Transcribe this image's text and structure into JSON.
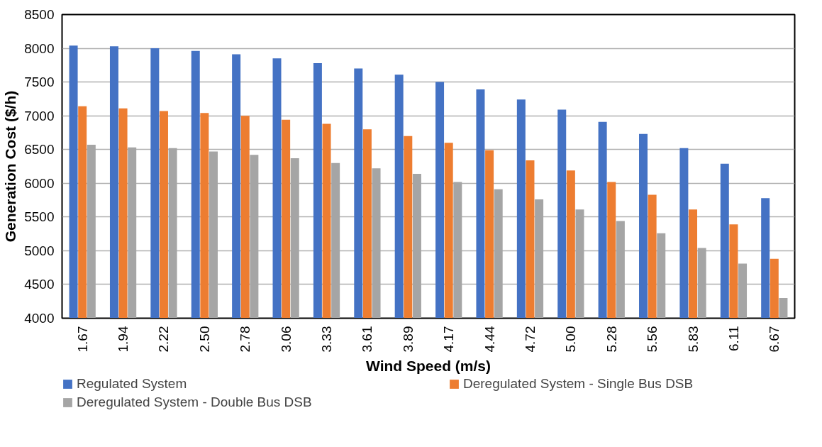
{
  "chart_data": {
    "type": "bar",
    "xlabel": "Wind Speed (m/s)",
    "ylabel": "Generation Cost ($/h)",
    "categories": [
      "1.67",
      "1.94",
      "2.22",
      "2.50",
      "2.78",
      "3.06",
      "3.33",
      "3.61",
      "3.89",
      "4.17",
      "4.44",
      "4.72",
      "5.00",
      "5.28",
      "5.56",
      "5.83",
      "6.11",
      "6.67"
    ],
    "series": [
      {
        "name": "Regulated System",
        "color": "#4472c4",
        "values": [
          8040,
          8030,
          8000,
          7960,
          7910,
          7850,
          7780,
          7700,
          7610,
          7500,
          7390,
          7240,
          7090,
          6910,
          6730,
          6520,
          6290,
          5780
        ]
      },
      {
        "name": "Deregulated System - Single Bus DSB",
        "color": "#ed7d31",
        "values": [
          7140,
          7110,
          7070,
          7040,
          7000,
          6940,
          6880,
          6800,
          6700,
          6600,
          6490,
          6340,
          6190,
          6020,
          5830,
          5610,
          5390,
          4880
        ]
      },
      {
        "name": "Deregulated System - Double Bus DSB",
        "color": "#a5a5a5",
        "values": [
          6570,
          6530,
          6520,
          6470,
          6420,
          6370,
          6300,
          6220,
          6140,
          6020,
          5910,
          5760,
          5610,
          5440,
          5260,
          5040,
          4810,
          4300
        ]
      }
    ],
    "ylim": [
      4000,
      8500
    ],
    "yticks": [
      4000,
      4500,
      5000,
      5500,
      6000,
      6500,
      7000,
      7500,
      8000,
      8500
    ],
    "grid": "y",
    "legend": "bottom"
  }
}
